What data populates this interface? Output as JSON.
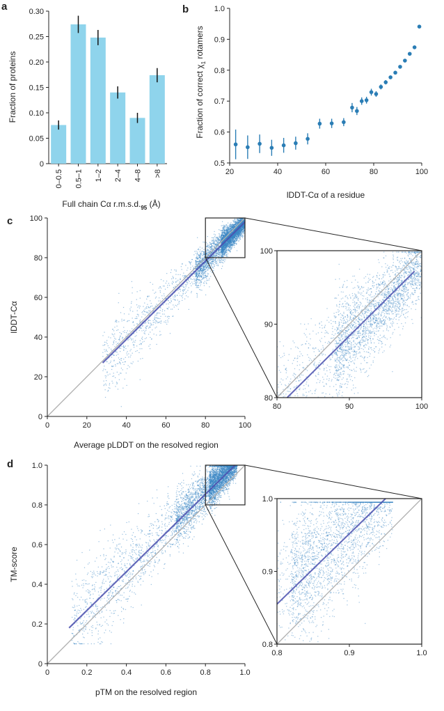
{
  "colors": {
    "bar": "#8fd4ec",
    "point": "#2a7db5",
    "scatter": "#3a86c4",
    "fit": "#4a4fae",
    "identity": "#b0b0b0",
    "axis": "#222222",
    "inset_box": "#222222"
  },
  "chart_data": [
    {
      "panel": "a",
      "type": "bar",
      "categories": [
        "0–0.5",
        "0.5–1",
        "1–2",
        "2–4",
        "4–8",
        ">8"
      ],
      "values": [
        0.076,
        0.274,
        0.248,
        0.14,
        0.09,
        0.174
      ],
      "errors": [
        0.009,
        0.017,
        0.015,
        0.012,
        0.01,
        0.014
      ],
      "xlabel_main": "Full chain Cα r.m.s.d.",
      "xlabel_sub": "95",
      "xlabel_unit": " (Å)",
      "ylabel": "Fraction of proteins",
      "ylim": [
        0,
        0.3
      ],
      "yticks": [
        "0",
        "0.05",
        "0.10",
        "0.15",
        "0.20",
        "0.25",
        "0.30"
      ]
    },
    {
      "panel": "b",
      "type": "scatter",
      "x": [
        22.5,
        27.5,
        32.5,
        37.5,
        42.5,
        47.5,
        52.5,
        57.5,
        62.5,
        67.5,
        71,
        73,
        75,
        77,
        79,
        81,
        83,
        85,
        87,
        89,
        91,
        93,
        95,
        97,
        99
      ],
      "y": [
        0.56,
        0.551,
        0.562,
        0.549,
        0.557,
        0.564,
        0.578,
        0.627,
        0.628,
        0.632,
        0.679,
        0.668,
        0.7,
        0.703,
        0.729,
        0.723,
        0.746,
        0.761,
        0.777,
        0.792,
        0.811,
        0.831,
        0.853,
        0.874,
        0.941
      ],
      "errors": [
        0.048,
        0.038,
        0.03,
        0.026,
        0.024,
        0.021,
        0.018,
        0.016,
        0.015,
        0.013,
        0.015,
        0.013,
        0.012,
        0.011,
        0.011,
        0.009,
        0.008,
        0.007,
        0.006,
        0.005,
        0.004,
        0.004,
        0.003,
        0.003,
        0.002
      ],
      "xlabel": "lDDT-Cα of a residue",
      "ylabel_main": "Fraction of correct χ",
      "ylabel_sub": "1",
      "ylabel_tail": " rotamers",
      "xlim": [
        20,
        100
      ],
      "ylim": [
        0.5,
        1.0
      ],
      "xticks": [
        "20",
        "40",
        "60",
        "80",
        "100"
      ],
      "yticks": [
        "0.5",
        "0.6",
        "0.7",
        "0.8",
        "0.9",
        "1.0"
      ]
    },
    {
      "panel": "c",
      "type": "scatter",
      "xlabel": "Average pLDDT on the resolved region",
      "ylabel": "lDDT-Cα",
      "xlim": [
        0,
        100
      ],
      "ylim": [
        0,
        100
      ],
      "xticks": [
        "0",
        "20",
        "40",
        "60",
        "80",
        "100"
      ],
      "yticks": [
        "0",
        "20",
        "40",
        "60",
        "80",
        "100"
      ],
      "fit_line": {
        "x": [
          28,
          100
        ],
        "y": [
          27,
          98
        ]
      },
      "identity_line": {
        "x": [
          0,
          100
        ],
        "y": [
          0,
          100
        ]
      },
      "inset": {
        "xlim": [
          80,
          100
        ],
        "ylim": [
          80,
          100
        ],
        "xticks": [
          "80",
          "90",
          "100"
        ],
        "yticks": [
          "80",
          "90",
          "100"
        ],
        "fit_line": {
          "x": [
            81.4,
            99
          ],
          "y": [
            80,
            97.2
          ]
        }
      }
    },
    {
      "panel": "d",
      "type": "scatter",
      "xlabel": "pTM on the resolved region",
      "ylabel": "TM-score",
      "xlim": [
        0,
        1.0
      ],
      "ylim": [
        0,
        1.0
      ],
      "xticks": [
        "0",
        "0.2",
        "0.4",
        "0.6",
        "0.8",
        "1.0"
      ],
      "yticks": [
        "0",
        "0.2",
        "0.4",
        "0.6",
        "0.8",
        "1.0"
      ],
      "fit_line": {
        "x": [
          0.11,
          0.95
        ],
        "y": [
          0.18,
          1.0
        ]
      },
      "identity_line": {
        "x": [
          0,
          1.0
        ],
        "y": [
          0,
          1.0
        ]
      },
      "inset": {
        "xlim": [
          0.8,
          1.0
        ],
        "ylim": [
          0.8,
          1.0
        ],
        "xticks": [
          "0.8",
          "0.9",
          "1.0"
        ],
        "yticks": [
          "0.8",
          "0.9",
          "1.0"
        ],
        "fit_line": {
          "x": [
            0.8,
            0.95
          ],
          "y": [
            0.855,
            1.0
          ]
        }
      }
    }
  ]
}
